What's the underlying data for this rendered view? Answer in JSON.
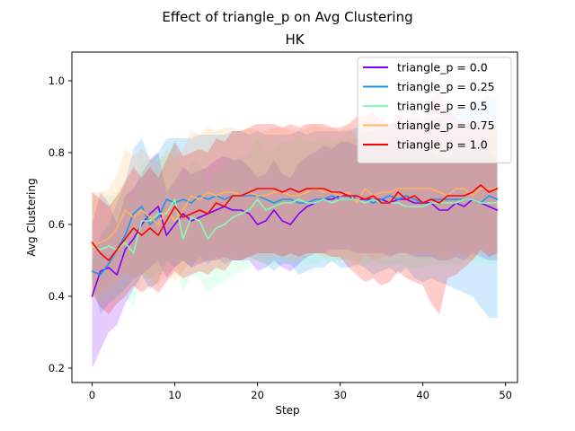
{
  "chart_data": {
    "type": "line",
    "title": "Effect of triangle_p on  Avg Clustering",
    "subtitle": "HK",
    "xlabel": "Step",
    "ylabel": "Avg Clustering",
    "xlim": [
      -2.45,
      51.45
    ],
    "ylim": [
      0.16,
      1.08
    ],
    "xticks": [
      0,
      10,
      20,
      30,
      40,
      50
    ],
    "yticks": [
      0.2,
      0.4,
      0.6,
      0.8,
      1.0
    ],
    "xtick_labels": [
      "0",
      "10",
      "20",
      "30",
      "40",
      "50"
    ],
    "ytick_labels": [
      "0.2",
      "0.4",
      "0.6",
      "0.8",
      "1.0"
    ],
    "legend_position": "top-right",
    "grid": false,
    "series": [
      {
        "name": "triangle_p = 0.0",
        "color": "#8000ff",
        "mean": [
          0.4,
          0.47,
          0.48,
          0.46,
          0.53,
          0.56,
          0.6,
          0.63,
          0.65,
          0.57,
          0.6,
          0.63,
          0.61,
          0.62,
          0.63,
          0.64,
          0.65,
          0.64,
          0.64,
          0.63,
          0.6,
          0.61,
          0.64,
          0.61,
          0.6,
          0.63,
          0.65,
          0.66,
          0.67,
          0.67,
          0.68,
          0.68,
          0.67,
          0.67,
          0.67,
          0.67,
          0.66,
          0.67,
          0.67,
          0.66,
          0.66,
          0.66,
          0.64,
          0.64,
          0.66,
          0.65,
          0.67,
          0.66,
          0.65,
          0.64
        ],
        "lower": [
          0.2,
          0.25,
          0.3,
          0.32,
          0.38,
          0.42,
          0.46,
          0.48,
          0.5,
          0.45,
          0.48,
          0.5,
          0.48,
          0.49,
          0.5,
          0.5,
          0.51,
          0.5,
          0.5,
          0.5,
          0.47,
          0.48,
          0.5,
          0.48,
          0.47,
          0.49,
          0.51,
          0.52,
          0.52,
          0.53,
          0.53,
          0.53,
          0.52,
          0.52,
          0.52,
          0.52,
          0.51,
          0.52,
          0.52,
          0.51,
          0.51,
          0.51,
          0.5,
          0.5,
          0.51,
          0.5,
          0.52,
          0.51,
          0.5,
          0.5
        ],
        "upper": [
          0.6,
          0.69,
          0.66,
          0.6,
          0.68,
          0.7,
          0.74,
          0.78,
          0.8,
          0.69,
          0.72,
          0.76,
          0.74,
          0.75,
          0.76,
          0.78,
          0.79,
          0.78,
          0.78,
          0.76,
          0.73,
          0.74,
          0.78,
          0.74,
          0.73,
          0.77,
          0.79,
          0.8,
          0.82,
          0.81,
          0.83,
          0.83,
          0.82,
          0.82,
          0.82,
          0.82,
          0.81,
          0.82,
          0.82,
          0.81,
          0.81,
          0.81,
          0.78,
          0.78,
          0.81,
          0.8,
          0.82,
          0.81,
          0.8,
          0.78
        ]
      },
      {
        "name": "triangle_p = 0.25",
        "color": "#1996f3",
        "mean": [
          0.47,
          0.46,
          0.49,
          0.53,
          0.57,
          0.63,
          0.65,
          0.6,
          0.62,
          0.67,
          0.66,
          0.67,
          0.66,
          0.68,
          0.67,
          0.68,
          0.67,
          0.68,
          0.68,
          0.68,
          0.68,
          0.67,
          0.66,
          0.67,
          0.67,
          0.66,
          0.66,
          0.67,
          0.67,
          0.68,
          0.67,
          0.67,
          0.68,
          0.67,
          0.66,
          0.67,
          0.68,
          0.67,
          0.68,
          0.67,
          0.66,
          0.67,
          0.67,
          0.67,
          0.67,
          0.67,
          0.67,
          0.66,
          0.68,
          0.67
        ],
        "lower": [
          0.44,
          0.35,
          0.38,
          0.4,
          0.42,
          0.45,
          0.46,
          0.42,
          0.44,
          0.5,
          0.48,
          0.5,
          0.48,
          0.51,
          0.49,
          0.51,
          0.49,
          0.5,
          0.5,
          0.51,
          0.5,
          0.49,
          0.47,
          0.49,
          0.49,
          0.46,
          0.47,
          0.48,
          0.48,
          0.5,
          0.48,
          0.48,
          0.49,
          0.48,
          0.46,
          0.47,
          0.48,
          0.46,
          0.48,
          0.45,
          0.44,
          0.45,
          0.44,
          0.43,
          0.42,
          0.41,
          0.4,
          0.37,
          0.34,
          0.34
        ],
        "upper": [
          0.5,
          0.57,
          0.6,
          0.66,
          0.72,
          0.81,
          0.84,
          0.78,
          0.8,
          0.84,
          0.84,
          0.84,
          0.84,
          0.85,
          0.85,
          0.85,
          0.85,
          0.86,
          0.86,
          0.85,
          0.86,
          0.85,
          0.85,
          0.85,
          0.85,
          0.86,
          0.85,
          0.86,
          0.86,
          0.86,
          0.86,
          0.86,
          0.87,
          0.86,
          0.86,
          0.87,
          0.88,
          0.88,
          0.88,
          0.89,
          0.88,
          0.89,
          0.9,
          0.91,
          0.92,
          0.93,
          0.94,
          0.95,
          0.96,
          0.96
        ]
      },
      {
        "name": "triangle_p = 0.5",
        "color": "#80ffb4",
        "mean": [
          0.54,
          0.53,
          0.54,
          0.53,
          0.55,
          0.52,
          0.61,
          0.61,
          0.63,
          0.63,
          0.67,
          0.56,
          0.62,
          0.61,
          0.56,
          0.59,
          0.6,
          0.62,
          0.63,
          0.64,
          0.67,
          0.64,
          0.65,
          0.66,
          0.66,
          0.67,
          0.66,
          0.66,
          0.67,
          0.66,
          0.67,
          0.67,
          0.67,
          0.66,
          0.67,
          0.66,
          0.66,
          0.66,
          0.65,
          0.65,
          0.65,
          0.66,
          0.66,
          0.66,
          0.66,
          0.67,
          0.67,
          0.66,
          0.66,
          0.66
        ],
        "lower": [
          0.4,
          0.38,
          0.4,
          0.38,
          0.4,
          0.37,
          0.45,
          0.45,
          0.47,
          0.47,
          0.5,
          0.41,
          0.46,
          0.45,
          0.41,
          0.43,
          0.44,
          0.46,
          0.47,
          0.48,
          0.5,
          0.48,
          0.49,
          0.49,
          0.49,
          0.5,
          0.49,
          0.49,
          0.5,
          0.49,
          0.5,
          0.5,
          0.5,
          0.49,
          0.5,
          0.49,
          0.49,
          0.49,
          0.48,
          0.48,
          0.48,
          0.49,
          0.49,
          0.49,
          0.49,
          0.5,
          0.5,
          0.49,
          0.49,
          0.49
        ],
        "upper": [
          0.68,
          0.68,
          0.68,
          0.68,
          0.7,
          0.67,
          0.77,
          0.77,
          0.79,
          0.79,
          0.84,
          0.71,
          0.78,
          0.77,
          0.71,
          0.75,
          0.76,
          0.78,
          0.79,
          0.8,
          0.84,
          0.8,
          0.81,
          0.83,
          0.83,
          0.84,
          0.83,
          0.83,
          0.84,
          0.83,
          0.84,
          0.84,
          0.84,
          0.83,
          0.84,
          0.83,
          0.83,
          0.83,
          0.82,
          0.82,
          0.82,
          0.83,
          0.83,
          0.83,
          0.83,
          0.84,
          0.84,
          0.83,
          0.83,
          0.83
        ]
      },
      {
        "name": "triangle_p = 0.75",
        "color": "#ffb360",
        "mean": [
          0.54,
          0.55,
          0.56,
          0.59,
          0.64,
          0.62,
          0.64,
          0.62,
          0.6,
          0.64,
          0.61,
          0.64,
          0.68,
          0.67,
          0.69,
          0.68,
          0.69,
          0.69,
          0.68,
          0.69,
          0.68,
          0.68,
          0.69,
          0.69,
          0.68,
          0.68,
          0.69,
          0.7,
          0.69,
          0.69,
          0.68,
          0.69,
          0.66,
          0.7,
          0.68,
          0.69,
          0.69,
          0.7,
          0.7,
          0.7,
          0.7,
          0.7,
          0.69,
          0.68,
          0.7,
          0.7,
          0.68,
          0.7,
          0.7,
          0.7
        ],
        "lower": [
          0.39,
          0.41,
          0.42,
          0.44,
          0.47,
          0.45,
          0.47,
          0.45,
          0.43,
          0.47,
          0.44,
          0.47,
          0.5,
          0.49,
          0.51,
          0.5,
          0.51,
          0.51,
          0.5,
          0.51,
          0.5,
          0.5,
          0.51,
          0.51,
          0.5,
          0.5,
          0.51,
          0.52,
          0.51,
          0.51,
          0.5,
          0.51,
          0.48,
          0.52,
          0.5,
          0.51,
          0.51,
          0.52,
          0.52,
          0.52,
          0.52,
          0.52,
          0.51,
          0.5,
          0.52,
          0.52,
          0.5,
          0.52,
          0.52,
          0.52
        ],
        "upper": [
          0.69,
          0.69,
          0.7,
          0.74,
          0.81,
          0.79,
          0.81,
          0.79,
          0.77,
          0.81,
          0.78,
          0.81,
          0.86,
          0.85,
          0.87,
          0.86,
          0.87,
          0.87,
          0.86,
          0.87,
          0.86,
          0.86,
          0.87,
          0.87,
          0.86,
          0.86,
          0.87,
          0.88,
          0.87,
          0.87,
          0.86,
          0.87,
          0.84,
          0.88,
          0.86,
          0.87,
          0.87,
          0.88,
          0.88,
          0.88,
          0.88,
          0.88,
          0.87,
          0.86,
          0.88,
          0.88,
          0.86,
          0.88,
          0.88,
          0.88
        ]
      },
      {
        "name": "triangle_p = 1.0",
        "color": "#ff0000",
        "mean": [
          0.55,
          0.52,
          0.5,
          0.53,
          0.56,
          0.59,
          0.57,
          0.59,
          0.57,
          0.61,
          0.65,
          0.62,
          0.63,
          0.64,
          0.63,
          0.66,
          0.65,
          0.68,
          0.68,
          0.69,
          0.7,
          0.7,
          0.7,
          0.69,
          0.7,
          0.69,
          0.7,
          0.7,
          0.7,
          0.69,
          0.69,
          0.68,
          0.68,
          0.67,
          0.68,
          0.66,
          0.66,
          0.69,
          0.67,
          0.68,
          0.66,
          0.67,
          0.66,
          0.68,
          0.68,
          0.68,
          0.69,
          0.71,
          0.69,
          0.7
        ],
        "lower": [
          0.41,
          0.37,
          0.35,
          0.38,
          0.4,
          0.43,
          0.41,
          0.43,
          0.41,
          0.44,
          0.47,
          0.45,
          0.46,
          0.47,
          0.46,
          0.48,
          0.47,
          0.5,
          0.5,
          0.51,
          0.52,
          0.52,
          0.52,
          0.51,
          0.52,
          0.51,
          0.52,
          0.52,
          0.52,
          0.51,
          0.51,
          0.48,
          0.46,
          0.44,
          0.45,
          0.43,
          0.44,
          0.47,
          0.45,
          0.44,
          0.43,
          0.38,
          0.35,
          0.45,
          0.46,
          0.48,
          0.5,
          0.53,
          0.51,
          0.52
        ],
        "upper": [
          0.69,
          0.67,
          0.65,
          0.68,
          0.72,
          0.76,
          0.73,
          0.76,
          0.73,
          0.78,
          0.83,
          0.79,
          0.8,
          0.81,
          0.8,
          0.84,
          0.83,
          0.86,
          0.86,
          0.87,
          0.88,
          0.88,
          0.88,
          0.87,
          0.88,
          0.87,
          0.88,
          0.88,
          0.88,
          0.87,
          0.87,
          0.88,
          0.9,
          0.9,
          0.91,
          0.89,
          0.88,
          0.91,
          0.89,
          0.92,
          0.89,
          0.96,
          0.97,
          0.91,
          0.9,
          0.88,
          0.88,
          0.89,
          0.87,
          0.88
        ]
      }
    ]
  }
}
